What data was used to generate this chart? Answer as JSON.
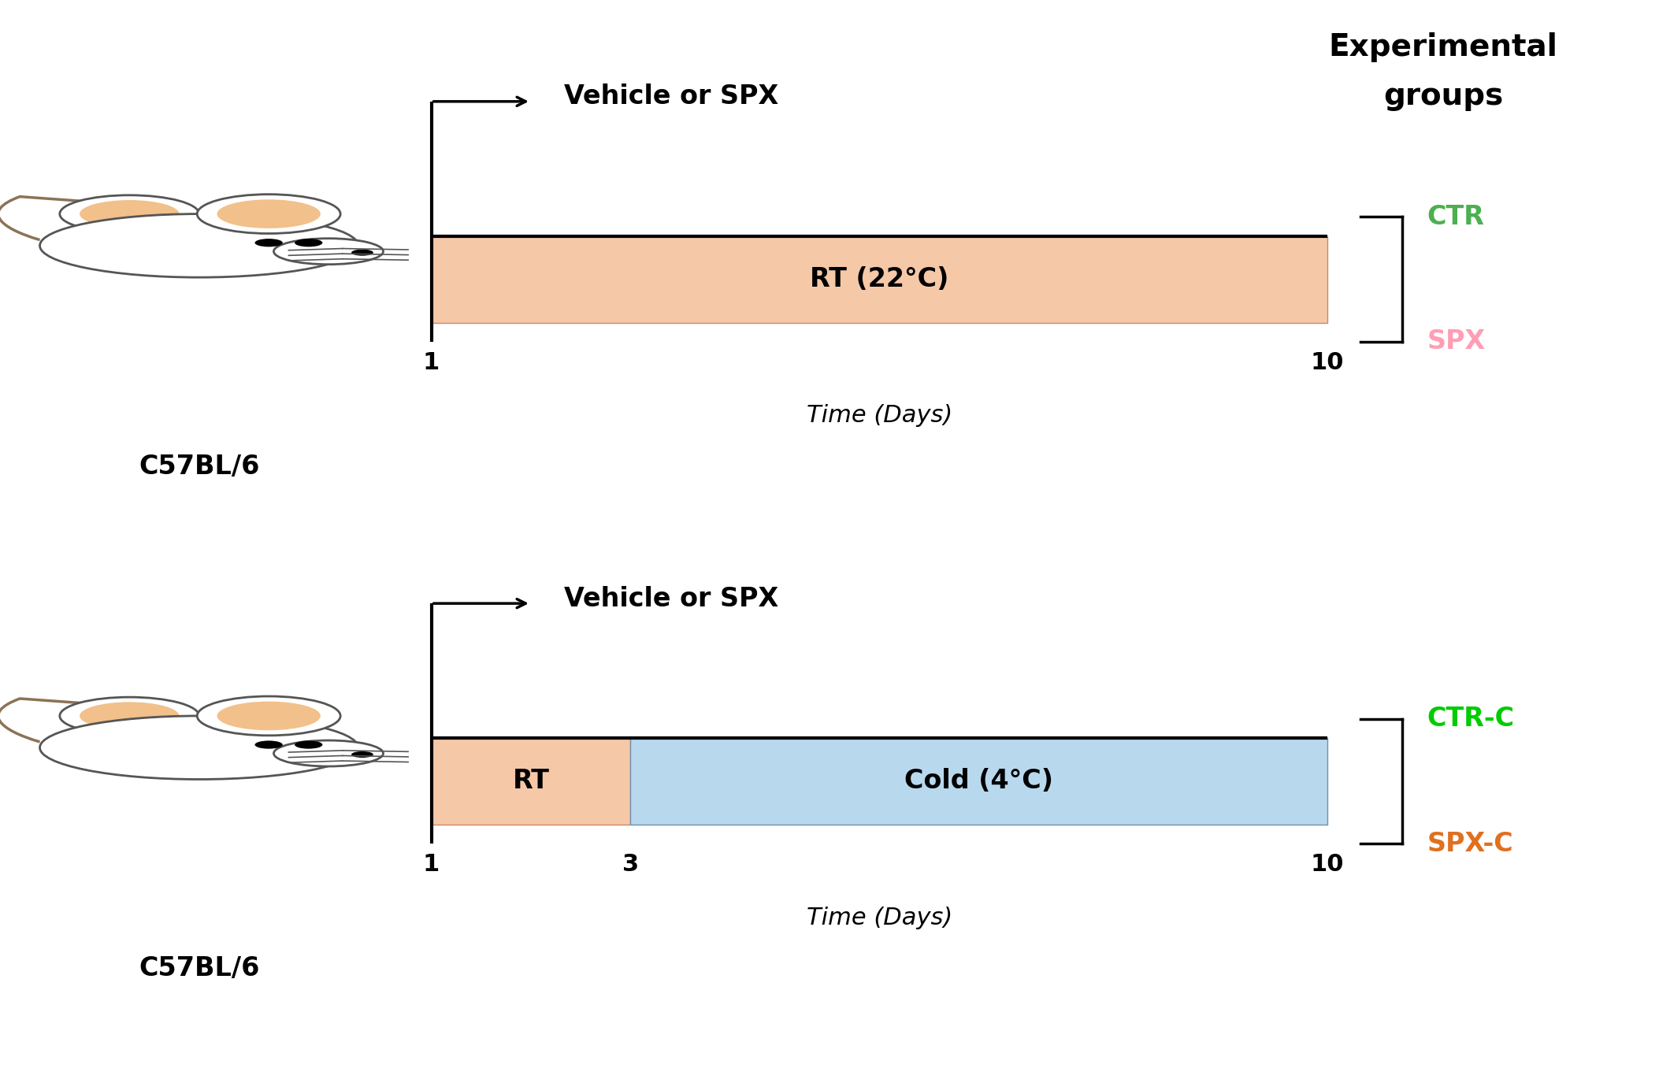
{
  "bg_color": "#ffffff",
  "title_text": "Experimental\ngroups",
  "title_fontsize": 28,
  "title_fontweight": "bold",
  "panel1": {
    "vehicle_label": "Vehicle or SPX",
    "bar_label": "RT (22°C)",
    "bar_color": "#F5C8A8",
    "bar_xstart": 1,
    "bar_xend": 10,
    "bar_height": 0.18,
    "time_label": "Time (Days)",
    "tick1": 1,
    "tick2": 10,
    "mouse_label": "C57BL/6",
    "groups": [
      "CTR",
      "SPX"
    ],
    "group_colors": [
      "#4CAF50",
      "#FF9EB5"
    ]
  },
  "panel2": {
    "vehicle_label": "Vehicle or SPX",
    "bar1_label": "RT",
    "bar1_color": "#F5C8A8",
    "bar1_xstart": 1,
    "bar1_xend": 3,
    "bar2_label": "Cold (4°C)",
    "bar2_color": "#B8D8EE",
    "bar2_xstart": 3,
    "bar2_xend": 10,
    "bar_height": 0.18,
    "time_label": "Time (Days)",
    "tick1": 1,
    "tick2": 3,
    "tick3": 10,
    "mouse_label": "C57BL/6",
    "groups": [
      "CTR-C",
      "SPX-C"
    ],
    "group_colors": [
      "#00CC00",
      "#E07020"
    ]
  },
  "font_sizes": {
    "vehicle_label": 24,
    "bar_label": 24,
    "time_label": 22,
    "tick_label": 22,
    "mouse_label": 24,
    "group_label": 24,
    "title": 28
  }
}
